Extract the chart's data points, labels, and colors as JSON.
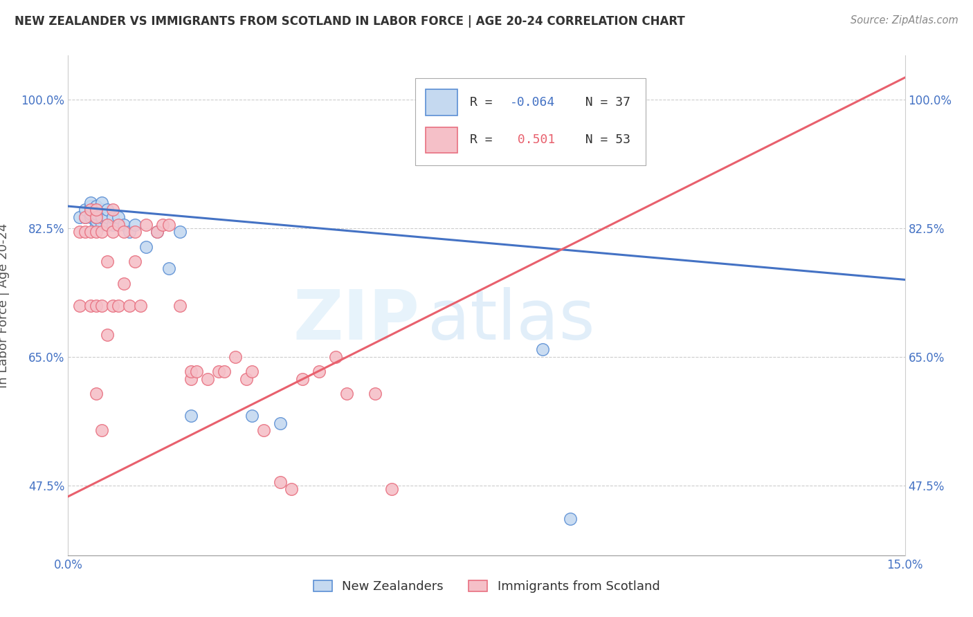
{
  "title": "NEW ZEALANDER VS IMMIGRANTS FROM SCOTLAND IN LABOR FORCE | AGE 20-24 CORRELATION CHART",
  "source": "Source: ZipAtlas.com",
  "ylabel": "In Labor Force | Age 20-24",
  "xlim": [
    0.0,
    0.15
  ],
  "ylim": [
    0.38,
    1.06
  ],
  "xticks": [
    0.0,
    0.025,
    0.05,
    0.075,
    0.1,
    0.125,
    0.15
  ],
  "xtick_labels_show": [
    "0.0%",
    "",
    "",
    "",
    "",
    "",
    "15.0%"
  ],
  "ytick_labels": [
    "47.5%",
    "65.0%",
    "82.5%",
    "100.0%"
  ],
  "yticks": [
    0.475,
    0.65,
    0.825,
    1.0
  ],
  "blue_R": -0.064,
  "blue_N": 37,
  "pink_R": 0.501,
  "pink_N": 53,
  "blue_fill": "#c5d9f0",
  "pink_fill": "#f5c0c8",
  "blue_edge": "#5b8fd4",
  "pink_edge": "#e87080",
  "blue_line_color": "#4472c4",
  "pink_line_color": "#e8606d",
  "blue_trend_y0": 0.855,
  "blue_trend_y1": 0.755,
  "pink_trend_y0": 0.46,
  "pink_trend_y1": 1.03,
  "blue_scatter_x": [
    0.002,
    0.003,
    0.003,
    0.004,
    0.004,
    0.004,
    0.004,
    0.004,
    0.005,
    0.005,
    0.005,
    0.005,
    0.005,
    0.005,
    0.005,
    0.006,
    0.006,
    0.006,
    0.006,
    0.007,
    0.007,
    0.007,
    0.008,
    0.008,
    0.009,
    0.01,
    0.011,
    0.012,
    0.014,
    0.016,
    0.018,
    0.02,
    0.022,
    0.033,
    0.038,
    0.085,
    0.09
  ],
  "blue_scatter_y": [
    0.84,
    0.84,
    0.85,
    0.84,
    0.845,
    0.85,
    0.855,
    0.86,
    0.83,
    0.835,
    0.84,
    0.84,
    0.845,
    0.85,
    0.855,
    0.83,
    0.84,
    0.85,
    0.86,
    0.83,
    0.84,
    0.85,
    0.83,
    0.84,
    0.84,
    0.83,
    0.82,
    0.83,
    0.8,
    0.82,
    0.77,
    0.82,
    0.57,
    0.57,
    0.56,
    0.66,
    0.43
  ],
  "pink_scatter_x": [
    0.002,
    0.002,
    0.003,
    0.003,
    0.004,
    0.004,
    0.004,
    0.005,
    0.005,
    0.005,
    0.005,
    0.005,
    0.006,
    0.006,
    0.006,
    0.007,
    0.007,
    0.007,
    0.008,
    0.008,
    0.008,
    0.009,
    0.009,
    0.01,
    0.01,
    0.011,
    0.012,
    0.012,
    0.013,
    0.014,
    0.016,
    0.017,
    0.018,
    0.02,
    0.022,
    0.022,
    0.023,
    0.025,
    0.027,
    0.028,
    0.03,
    0.032,
    0.033,
    0.035,
    0.038,
    0.04,
    0.042,
    0.045,
    0.048,
    0.05,
    0.055,
    0.058,
    0.09
  ],
  "pink_scatter_y": [
    0.72,
    0.82,
    0.82,
    0.84,
    0.72,
    0.82,
    0.85,
    0.6,
    0.72,
    0.82,
    0.84,
    0.85,
    0.55,
    0.72,
    0.82,
    0.68,
    0.78,
    0.83,
    0.72,
    0.82,
    0.85,
    0.72,
    0.83,
    0.75,
    0.82,
    0.72,
    0.78,
    0.82,
    0.72,
    0.83,
    0.82,
    0.83,
    0.83,
    0.72,
    0.62,
    0.63,
    0.63,
    0.62,
    0.63,
    0.63,
    0.65,
    0.62,
    0.63,
    0.55,
    0.48,
    0.47,
    0.62,
    0.63,
    0.65,
    0.6,
    0.6,
    0.47,
    1.0
  ],
  "legend_blue_label": "R = -0.064  N = 37",
  "legend_pink_label": "R =  0.501  N = 53",
  "bottom_legend_blue": "New Zealanders",
  "bottom_legend_pink": "Immigrants from Scotland",
  "watermark_zip": "ZIP",
  "watermark_atlas": "atlas"
}
